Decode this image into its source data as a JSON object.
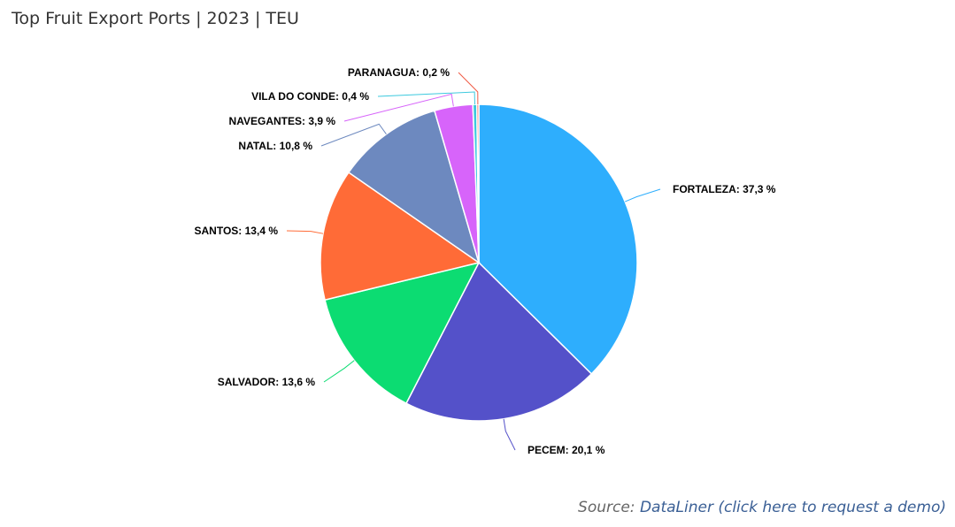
{
  "title": "Top Fruit Export Ports | 2023 | TEU",
  "source": {
    "prefix": "Source: ",
    "link": "DataLiner (click here to request a demo)"
  },
  "chart_data": {
    "type": "pie",
    "title": "Top Fruit Export Ports | 2023 | TEU",
    "unit": "%",
    "slices": [
      {
        "label": "FORTALEZA",
        "value": 37.3,
        "display": "FORTALEZA: 37,3 %",
        "color": "#2EAEFD"
      },
      {
        "label": "PECEM",
        "value": 20.1,
        "display": "PECEM: 20,1 %",
        "color": "#5451C9"
      },
      {
        "label": "SALVADOR",
        "value": 13.6,
        "display": "SALVADOR: 13,6 %",
        "color": "#0CDC72"
      },
      {
        "label": "SANTOS",
        "value": 13.4,
        "display": "SANTOS: 13,4 %",
        "color": "#FF6B37"
      },
      {
        "label": "NATAL",
        "value": 10.8,
        "display": "NATAL: 10,8 %",
        "color": "#6D89BF"
      },
      {
        "label": "NAVEGANTES",
        "value": 3.9,
        "display": "NAVEGANTES: 3,9 %",
        "color": "#D764FA"
      },
      {
        "label": "VILA DO CONDE",
        "value": 0.4,
        "display": "VILA DO CONDE: 0,4 %",
        "color": "#3CC9DE"
      },
      {
        "label": "PARANAGUA",
        "value": 0.2,
        "display": "PARANAGUA: 0,2 %",
        "color": "#F05B45"
      }
    ]
  }
}
